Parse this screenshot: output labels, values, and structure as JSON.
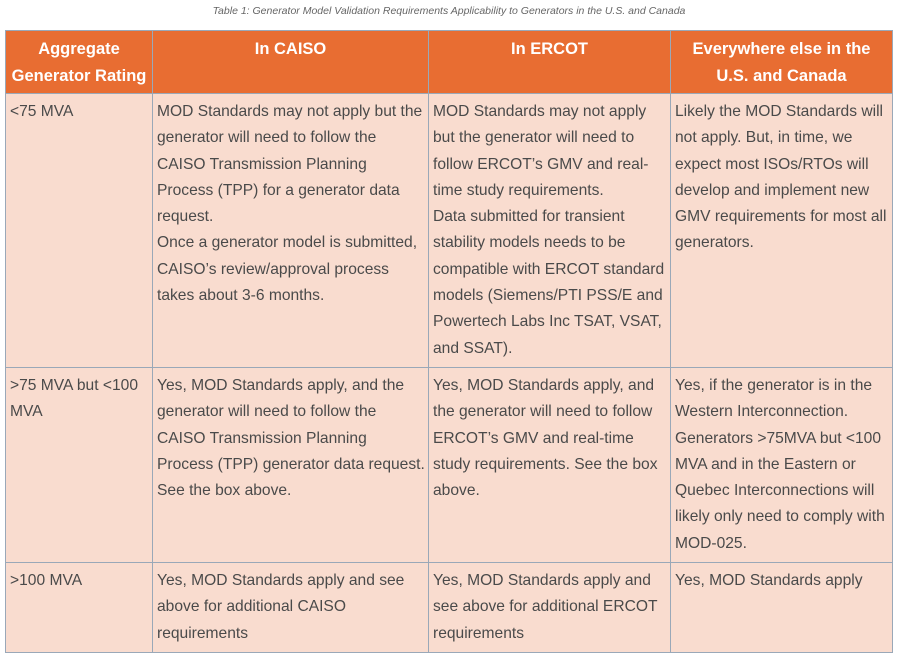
{
  "caption": "Table 1: Generator Model Validation Requirements Applicability to Generators in the U.S. and Canada",
  "colors": {
    "header_bg": "#e86d32",
    "cell_bg": "#f9dccf",
    "border": "#9aa8b8"
  },
  "headers": [
    "Aggregate Generator Rating",
    "In CAISO",
    "In ERCOT",
    "Everywhere else in the U.S. and Canada"
  ],
  "rows": [
    {
      "rating": "<75 MVA",
      "caiso": [
        "MOD Standards may not apply but the generator will need to follow the CAISO Transmission Planning Process (TPP) for a generator data request.",
        "Once a generator model is submitted, CAISO’s review/approval process takes about 3-6 months."
      ],
      "ercot": [
        "MOD Standards may not apply but the generator will need to follow ERCOT’s GMV and real-time study requirements.",
        "Data submitted for transient stability models needs to be compatible with ERCOT standard models (Siemens/PTI PSS/E and Powertech Labs Inc TSAT, VSAT, and SSAT)."
      ],
      "elsewhere": [
        "Likely the MOD Standards will not apply. But, in time, we expect most ISOs/RTOs will develop and implement new GMV requirements for most all generators."
      ]
    },
    {
      "rating": ">75 MVA but <100 MVA",
      "caiso": [
        "Yes, MOD Standards apply, and the generator will need to follow the CAISO Transmission Planning Process (TPP) generator data request. See the box above."
      ],
      "ercot": [
        "Yes, MOD Standards apply, and the generator will need to follow ERCOT’s GMV and real-time study requirements. See the box above."
      ],
      "elsewhere": [
        "Yes, if the generator is in the Western Interconnection. Generators >75MVA but <100 MVA and in the Eastern or Quebec Interconnections will likely only need to comply with MOD-025."
      ]
    },
    {
      "rating": ">100 MVA",
      "caiso": [
        "Yes, MOD Standards apply and see above for additional CAISO requirements"
      ],
      "ercot": [
        "Yes, MOD Standards apply and see above for additional ERCOT requirements"
      ],
      "elsewhere": [
        "Yes, MOD Standards apply"
      ]
    }
  ]
}
